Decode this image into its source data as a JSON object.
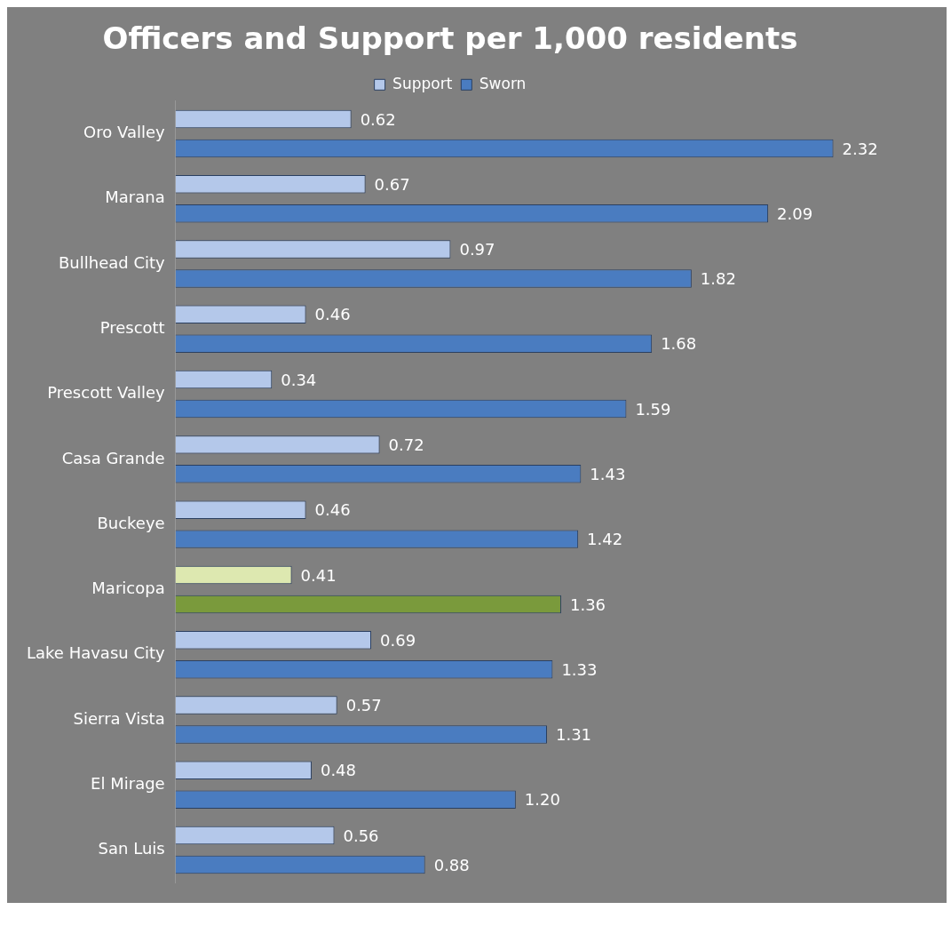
{
  "chart_data": {
    "type": "bar",
    "orientation": "horizontal",
    "title": "Officers and Support per 1,000 residents",
    "legend": "top",
    "categories": [
      "Oro Valley",
      "Marana",
      "Bullhead City",
      "Prescott",
      "Prescott Valley",
      "Casa Grande",
      "Buckeye",
      "Maricopa",
      "Lake Havasu City",
      "Sierra Vista",
      "El Mirage",
      "San Luis"
    ],
    "series": [
      {
        "name": "Support",
        "color": "#b4c8ea",
        "colors": [
          "#b4c8ea",
          "#b4c8ea",
          "#b4c8ea",
          "#b4c8ea",
          "#b4c8ea",
          "#b4c8ea",
          "#b4c8ea",
          "#dde8b0",
          "#b4c8ea",
          "#b4c8ea",
          "#b4c8ea",
          "#b4c8ea"
        ],
        "values": [
          0.62,
          0.67,
          0.97,
          0.46,
          0.34,
          0.72,
          0.46,
          0.41,
          0.69,
          0.57,
          0.48,
          0.56
        ],
        "value_labels": [
          "0.62",
          "0.67",
          "0.97",
          "0.46",
          "0.34",
          "0.72",
          "0.46",
          "0.41",
          "0.69",
          "0.57",
          "0.48",
          "0.56"
        ]
      },
      {
        "name": "Sworn",
        "color": "#4a7cc0",
        "colors": [
          "#4a7cc0",
          "#4a7cc0",
          "#4a7cc0",
          "#4a7cc0",
          "#4a7cc0",
          "#4a7cc0",
          "#4a7cc0",
          "#7a9a3c",
          "#4a7cc0",
          "#4a7cc0",
          "#4a7cc0",
          "#4a7cc0"
        ],
        "values": [
          2.32,
          2.09,
          1.82,
          1.68,
          1.59,
          1.43,
          1.42,
          1.36,
          1.33,
          1.31,
          1.2,
          0.88
        ],
        "value_labels": [
          "2.32",
          "2.09",
          "1.82",
          "1.68",
          "1.59",
          "1.43",
          "1.42",
          "1.36",
          "1.33",
          "1.31",
          "1.20",
          "0.88"
        ]
      }
    ],
    "grid": false
  }
}
